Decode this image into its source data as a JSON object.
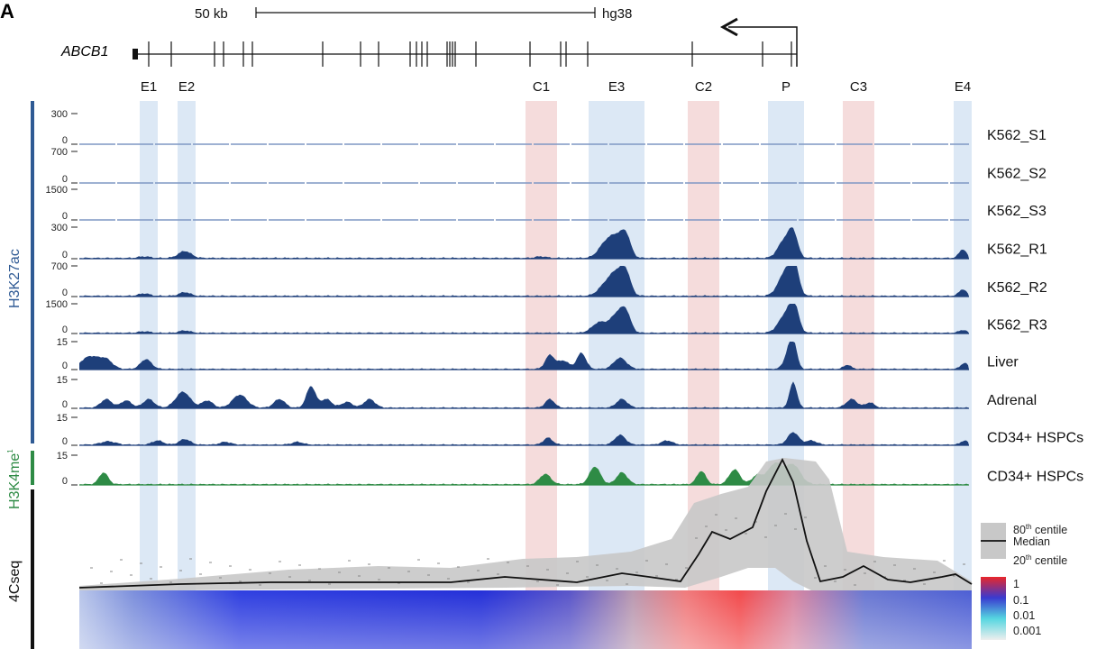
{
  "panel_label": "A",
  "scale": {
    "length_label": "50 kb",
    "assembly": "hg38"
  },
  "gene": {
    "name": "ABCB1"
  },
  "regions": [
    {
      "label": "E1",
      "kind": "enhancer"
    },
    {
      "label": "E2",
      "kind": "enhancer"
    },
    {
      "label": "C1",
      "kind": "ctcf"
    },
    {
      "label": "E3",
      "kind": "enhancer"
    },
    {
      "label": "C2",
      "kind": "ctcf"
    },
    {
      "label": "P",
      "kind": "promoter"
    },
    {
      "label": "C3",
      "kind": "ctcf"
    },
    {
      "label": "E4",
      "kind": "enhancer"
    }
  ],
  "groups": {
    "h3k27ac": "H3K27ac",
    "h3k4me1_base": "H3K4me",
    "h3k4me1_sup": "1",
    "fourc": "4Cseq"
  },
  "tracks": [
    {
      "name": "K562_S1",
      "ymax": "300",
      "ymin": "0",
      "signal": "flat"
    },
    {
      "name": "K562_S2",
      "ymax": "700",
      "ymin": "0",
      "signal": "flat"
    },
    {
      "name": "K562_S3",
      "ymax": "1500",
      "ymin": "0",
      "signal": "flat"
    },
    {
      "name": "K562_R1",
      "ymax": "300",
      "ymin": "0",
      "signal": "k562r1"
    },
    {
      "name": "K562_R2",
      "ymax": "700",
      "ymin": "0",
      "signal": "k562r2"
    },
    {
      "name": "K562_R3",
      "ymax": "1500",
      "ymin": "0",
      "signal": "k562r3"
    },
    {
      "name": "Liver",
      "ymax": "15",
      "ymin": "0",
      "signal": "liver"
    },
    {
      "name": "Adrenal",
      "ymax": "15",
      "ymin": "0",
      "signal": "adrenal"
    },
    {
      "name": "CD34+ HSPCs",
      "ymax": "15",
      "ymin": "0",
      "signal": "cd34ac"
    },
    {
      "name": "CD34+ HSPCs",
      "ymax": "15",
      "ymin": "0",
      "signal": "cd34me1"
    }
  ],
  "fourc_legend": {
    "p80_base": "80",
    "p80_sup": "th",
    "p80_rest": " centile",
    "median": "Median",
    "p20_base": "20",
    "p20_sup": "th",
    "p20_rest": " centile"
  },
  "heatmap_scale": [
    "1",
    "0.1",
    "0.01",
    "0.001"
  ],
  "colors": {
    "enhancer_band": "#dce8f5",
    "ctcf_band": "#f5dcdc",
    "h3k27ac_fill": "#1e3f7a",
    "h3k4me1_fill": "#2e8b45",
    "h3k27ac_bar": "#2f5a94",
    "h3k4me1_bar": "#2e8b45",
    "fourc_bar": "#111111",
    "centile_band": "#c8c8c8",
    "heat_high": "#e8262a",
    "heat_mid": "#3a3ad0",
    "heat_low": "#55d6e0",
    "heat_min": "#eeeeee"
  }
}
